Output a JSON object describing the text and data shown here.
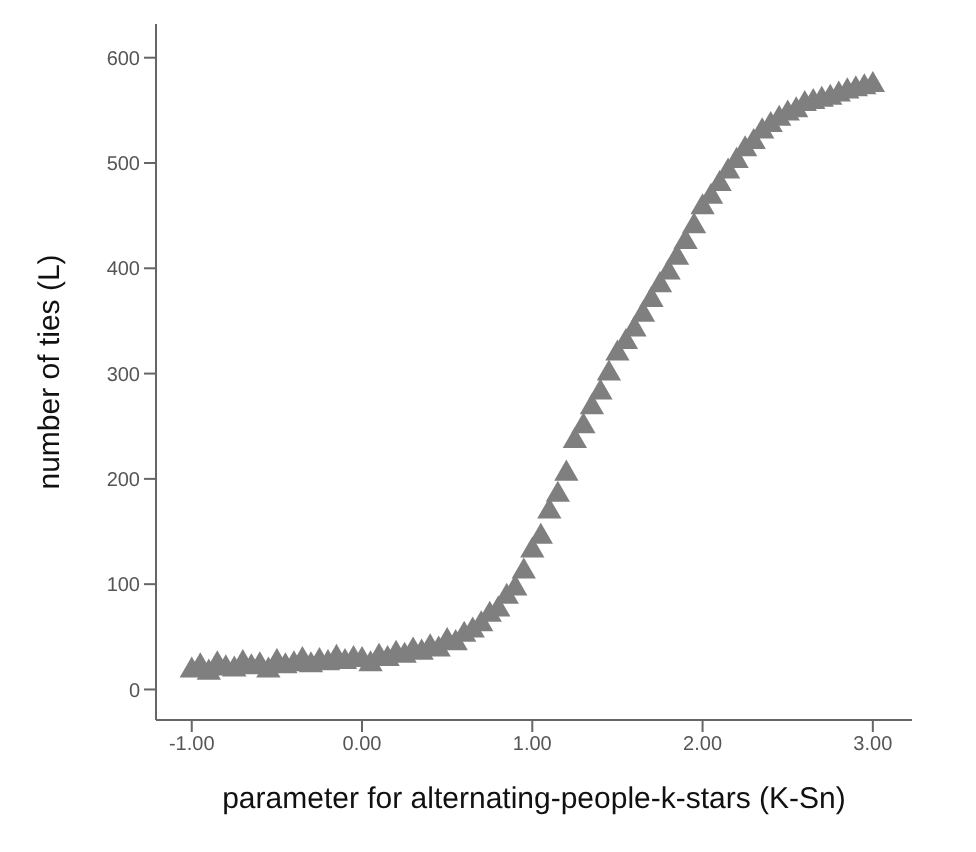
{
  "chart_data": {
    "type": "scatter",
    "xlabel": "parameter for alternating-people-k-stars (K-Sn)",
    "ylabel": "number of ties (L)",
    "x": [
      -1,
      -0.95,
      -0.9,
      -0.85,
      -0.8,
      -0.75,
      -0.7,
      -0.65,
      -0.6,
      -0.55,
      -0.5,
      -0.45,
      -0.4,
      -0.35,
      -0.3,
      -0.25,
      -0.2,
      -0.15,
      -0.1,
      -0.05,
      0,
      0.05,
      0.1,
      0.15,
      0.2,
      0.25,
      0.3,
      0.35,
      0.4,
      0.45,
      0.5,
      0.55,
      0.6,
      0.65,
      0.7,
      0.75,
      0.8,
      0.85,
      0.9,
      0.95,
      1,
      1.05,
      1.1,
      1.15,
      1.2,
      1.25,
      1.3,
      1.35,
      1.4,
      1.45,
      1.5,
      1.55,
      1.6,
      1.65,
      1.7,
      1.75,
      1.8,
      1.85,
      1.9,
      1.95,
      2,
      2.05,
      2.1,
      2.15,
      2.2,
      2.25,
      2.3,
      2.35,
      2.4,
      2.45,
      2.5,
      2.55,
      2.6,
      2.65,
      2.7,
      2.75,
      2.8,
      2.85,
      2.9,
      2.95,
      3
    ],
    "series": [
      {
        "color": "#7f7f7f",
        "values": [
          18,
          22,
          16,
          24,
          20,
          19,
          25,
          21,
          23,
          18,
          26,
          22,
          24,
          28,
          23,
          27,
          25,
          30,
          26,
          29,
          28,
          24,
          31,
          29,
          34,
          32,
          37,
          35,
          40,
          38,
          46,
          44,
          52,
          56,
          62,
          71,
          76,
          88,
          96,
          112,
          132,
          145,
          169,
          185,
          205,
          236,
          250,
          268,
          282,
          300,
          319,
          330,
          342,
          356,
          370,
          384,
          396,
          410,
          425,
          440,
          458,
          468,
          480,
          492,
          502,
          513,
          520,
          530,
          536,
          542,
          547,
          550,
          556,
          558,
          560,
          562,
          565,
          568,
          570,
          572,
          574
        ]
      }
    ],
    "xlim": [
      -1.21,
      3.23
    ],
    "ylim": [
      -29,
      632
    ],
    "xticks": [
      {
        "value": -1,
        "label": "-1.00"
      },
      {
        "value": 0,
        "label": "0.00"
      },
      {
        "value": 1,
        "label": "1.00"
      },
      {
        "value": 2,
        "label": "2.00"
      },
      {
        "value": 3,
        "label": "3.00"
      }
    ],
    "yticks": [
      0,
      100,
      200,
      300,
      400,
      500,
      600
    ],
    "grid": false,
    "marker": "triangle"
  }
}
